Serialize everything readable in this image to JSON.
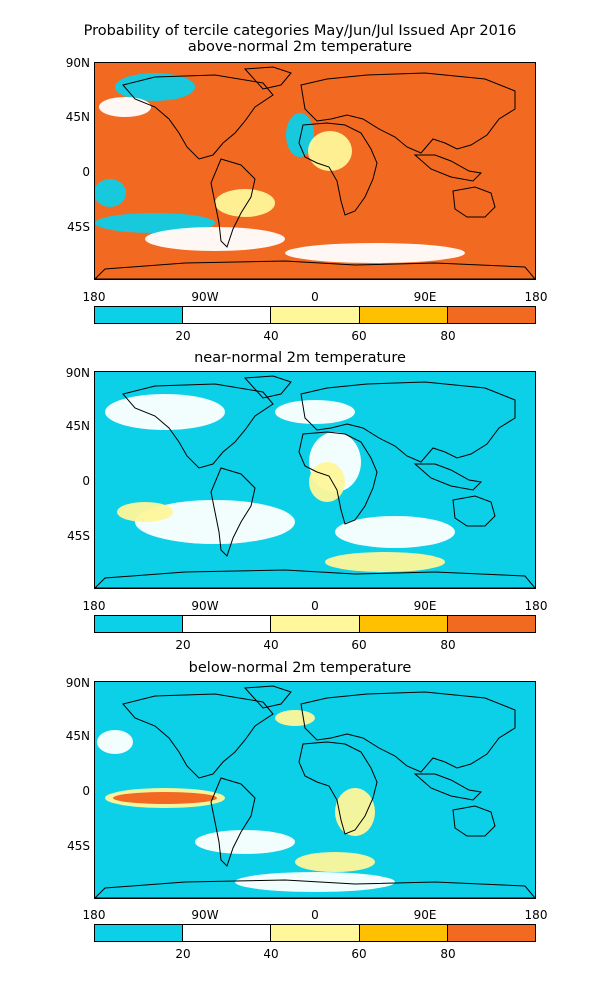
{
  "title": {
    "line1": "Probability of tercile categories May/Jun/Jul Issued Apr 2016",
    "line2": "above-normal 2m temperature"
  },
  "panels": [
    {
      "title": "above-normal 2m temperature",
      "theme": "above"
    },
    {
      "title": "near-normal 2m temperature",
      "theme": "near"
    },
    {
      "title": "below-normal 2m temperature",
      "theme": "below"
    }
  ],
  "lat_labels": [
    "90N",
    "45N",
    "0",
    "45S"
  ],
  "lon_labels": [
    "180",
    "90W",
    "0",
    "90E",
    "180"
  ],
  "colorbar": {
    "colors": [
      "#0ccfe8",
      "#ffffff",
      "#fff79a",
      "#ffc000",
      "#f26a21"
    ],
    "labels": [
      "20",
      "40",
      "60",
      "80"
    ]
  }
}
